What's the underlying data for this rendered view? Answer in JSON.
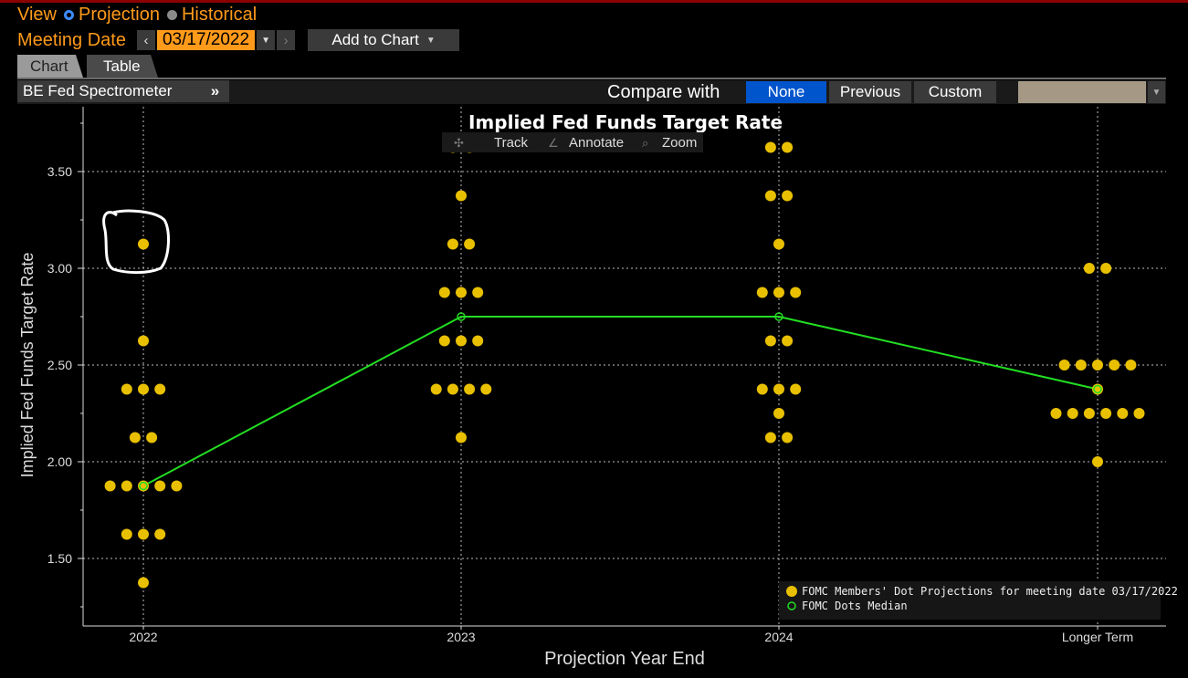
{
  "header": {
    "view_label": "View",
    "projection_label": "Projection",
    "historical_label": "Historical",
    "meeting_date_label": "Meeting Date",
    "meeting_date_value": "03/17/2022",
    "add_to_chart_label": "Add to Chart"
  },
  "tabs": {
    "chart": "Chart",
    "table": "Table"
  },
  "toolbar": {
    "spectrometer_label": "BE Fed Spectrometer",
    "expand_label": "»",
    "compare_label": "Compare with",
    "compare_none": "None",
    "compare_previous": "Previous",
    "compare_custom": "Custom"
  },
  "chart_tools": {
    "track": "Track",
    "annotate": "Annotate",
    "zoom": "Zoom"
  },
  "colors": {
    "accent_orange": "#ff9a1a",
    "dot_yellow": "#e8c000",
    "median_green": "#22dd22",
    "selected_blue": "#0055cc"
  },
  "chart_data": {
    "type": "scatter",
    "title": "Implied Fed Funds Target Rate",
    "xlabel": "Projection Year End",
    "ylabel": "Implied Fed Funds Target Rate",
    "categories": [
      "2022",
      "2023",
      "2024",
      "Longer Term"
    ],
    "yticks": [
      "1.50",
      "2.00",
      "2.50",
      "3.00",
      "3.50"
    ],
    "ylim": [
      1.2,
      3.75
    ],
    "grid": true,
    "legend_position": "bottom-right",
    "series": [
      {
        "name": "FOMC Members' Dot Projections for meeting date 03/17/2022",
        "color": "#e8c000",
        "dots": [
          [
            [
              3.125,
              1
            ],
            [
              2.625,
              1
            ],
            [
              2.375,
              3
            ],
            [
              2.125,
              2
            ],
            [
              1.875,
              5
            ],
            [
              1.625,
              3
            ],
            [
              1.375,
              1
            ]
          ],
          [
            [
              3.625,
              2
            ],
            [
              3.375,
              1
            ],
            [
              3.125,
              2
            ],
            [
              2.875,
              3
            ],
            [
              2.625,
              3
            ],
            [
              2.375,
              4
            ],
            [
              2.125,
              1
            ]
          ],
          [
            [
              3.625,
              2
            ],
            [
              3.375,
              2
            ],
            [
              3.125,
              1
            ],
            [
              2.875,
              3
            ],
            [
              2.625,
              2
            ],
            [
              2.375,
              3
            ],
            [
              2.25,
              1
            ],
            [
              2.125,
              2
            ]
          ],
          [
            [
              3.0,
              2
            ],
            [
              2.5,
              5
            ],
            [
              2.375,
              1
            ],
            [
              2.25,
              6
            ],
            [
              2.0,
              1
            ]
          ]
        ]
      },
      {
        "name": "FOMC Dots Median",
        "color": "#22dd22",
        "values": [
          1.875,
          2.75,
          2.75,
          2.375
        ]
      }
    ]
  }
}
